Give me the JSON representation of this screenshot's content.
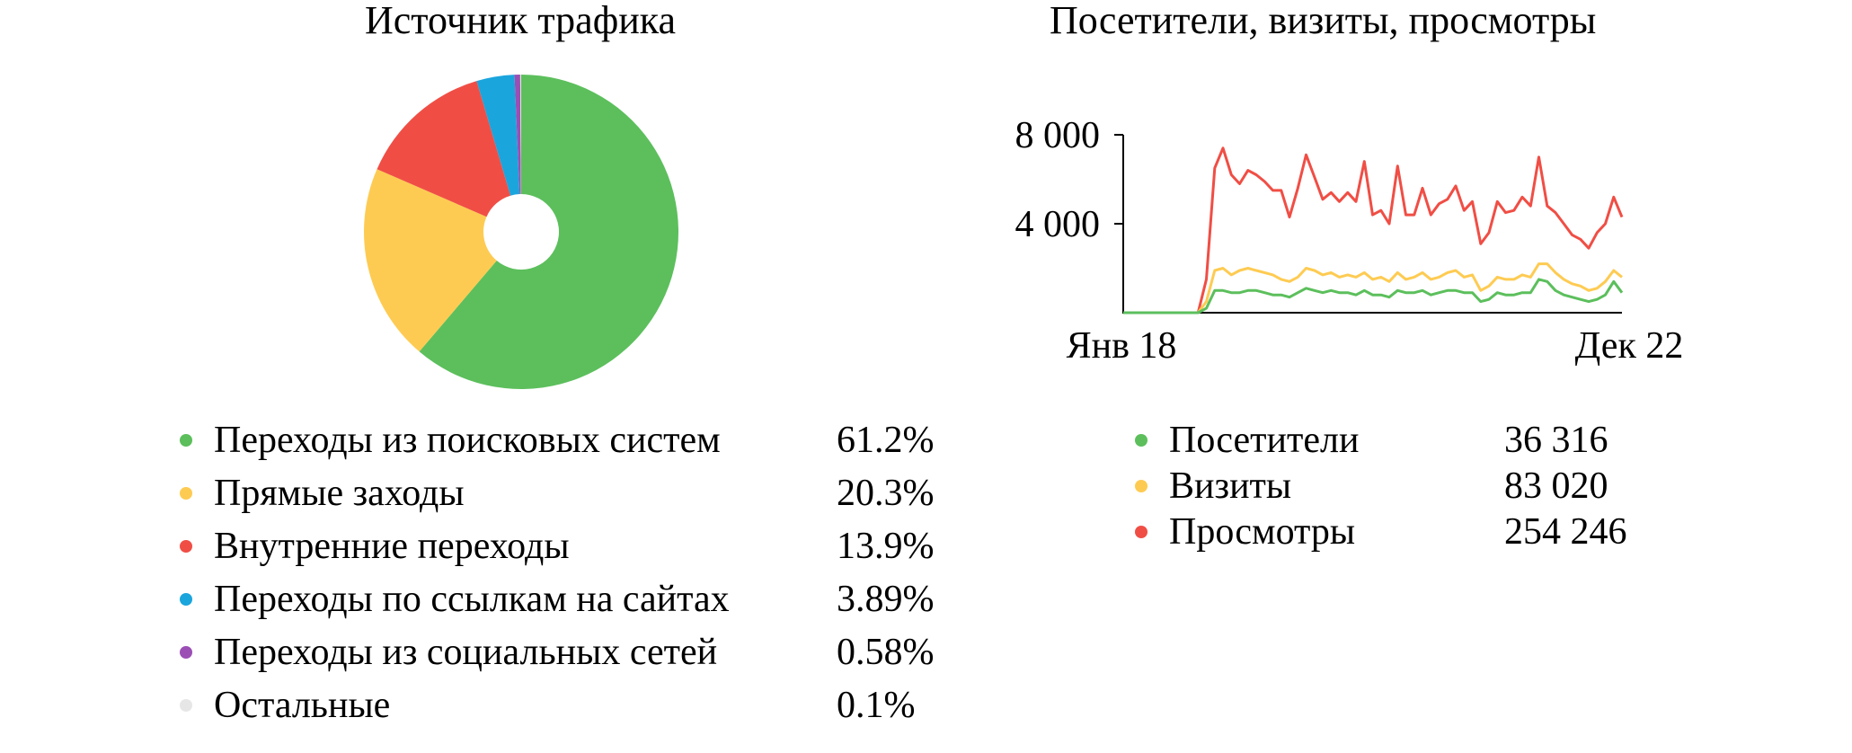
{
  "chart_data": [
    {
      "type": "pie",
      "variant": "donut",
      "title": "Источник трафика",
      "slices": [
        {
          "label": "Переходы из поисковых систем",
          "value": 61.2,
          "display": "61.2%",
          "color": "#5cbf5c"
        },
        {
          "label": "Прямые заходы",
          "value": 20.3,
          "display": "20.3%",
          "color": "#fecb52"
        },
        {
          "label": "Внутренние переходы",
          "value": 13.9,
          "display": "13.9%",
          "color": "#f04e45"
        },
        {
          "label": "Переходы по ссылкам на сайтах",
          "value": 3.89,
          "display": "3.89%",
          "color": "#1ba5dd"
        },
        {
          "label": "Переходы из социальных сетей",
          "value": 0.58,
          "display": "0.58%",
          "color": "#9b4fb5"
        },
        {
          "label": "Остальные",
          "value": 0.1,
          "display": "0.1%",
          "color": "#e6e6e6"
        }
      ]
    },
    {
      "type": "line",
      "title": "Посетители, визиты, просмотры",
      "x_range_labels": [
        "Янв 18",
        "Дек 22"
      ],
      "yticks": [
        4000,
        8000
      ],
      "ytick_labels": [
        "4 000",
        "8 000"
      ],
      "ylim": [
        0,
        8000
      ],
      "series": [
        {
          "name": "Просмотры",
          "total": "254 246",
          "color": "#f04e45",
          "values": [
            0,
            0,
            0,
            0,
            0,
            0,
            0,
            0,
            0,
            0,
            1500,
            6500,
            7400,
            6200,
            5800,
            6400,
            6200,
            5900,
            5500,
            5500,
            4300,
            5600,
            7100,
            6100,
            5100,
            5400,
            5000,
            5400,
            5000,
            6800,
            4400,
            4600,
            4000,
            6600,
            4400,
            4400,
            5600,
            4400,
            4900,
            5100,
            5700,
            4600,
            5000,
            3100,
            3600,
            5000,
            4500,
            4600,
            5200,
            4800,
            7000,
            4800,
            4500,
            4000,
            3500,
            3300,
            2900,
            3600,
            4000,
            5200,
            4300
          ]
        },
        {
          "name": "Визиты",
          "total": "83 020",
          "color": "#fecb52",
          "values": [
            0,
            0,
            0,
            0,
            0,
            0,
            0,
            0,
            0,
            0,
            500,
            1900,
            2000,
            1700,
            1900,
            2000,
            1900,
            1800,
            1700,
            1500,
            1400,
            1600,
            2000,
            1900,
            1700,
            1800,
            1600,
            1700,
            1600,
            1800,
            1500,
            1600,
            1400,
            1800,
            1500,
            1600,
            1800,
            1500,
            1600,
            1800,
            1900,
            1600,
            1700,
            1000,
            1200,
            1600,
            1500,
            1500,
            1700,
            1600,
            2200,
            2200,
            1800,
            1500,
            1300,
            1200,
            1000,
            1100,
            1400,
            1900,
            1600
          ]
        },
        {
          "name": "Посетители",
          "total": "36 316",
          "color": "#5cbf5c",
          "values": [
            0,
            0,
            0,
            0,
            0,
            0,
            0,
            0,
            0,
            0,
            200,
            1000,
            1000,
            900,
            900,
            1000,
            1000,
            900,
            800,
            800,
            700,
            900,
            1100,
            1000,
            900,
            1000,
            900,
            900,
            800,
            1000,
            800,
            800,
            700,
            1000,
            900,
            900,
            1000,
            800,
            900,
            1000,
            1000,
            900,
            900,
            500,
            600,
            900,
            800,
            800,
            900,
            900,
            1500,
            1400,
            1000,
            800,
            700,
            600,
            500,
            600,
            800,
            1400,
            900
          ]
        }
      ],
      "legend_order": [
        "Посетители",
        "Визиты",
        "Просмотры"
      ]
    }
  ]
}
